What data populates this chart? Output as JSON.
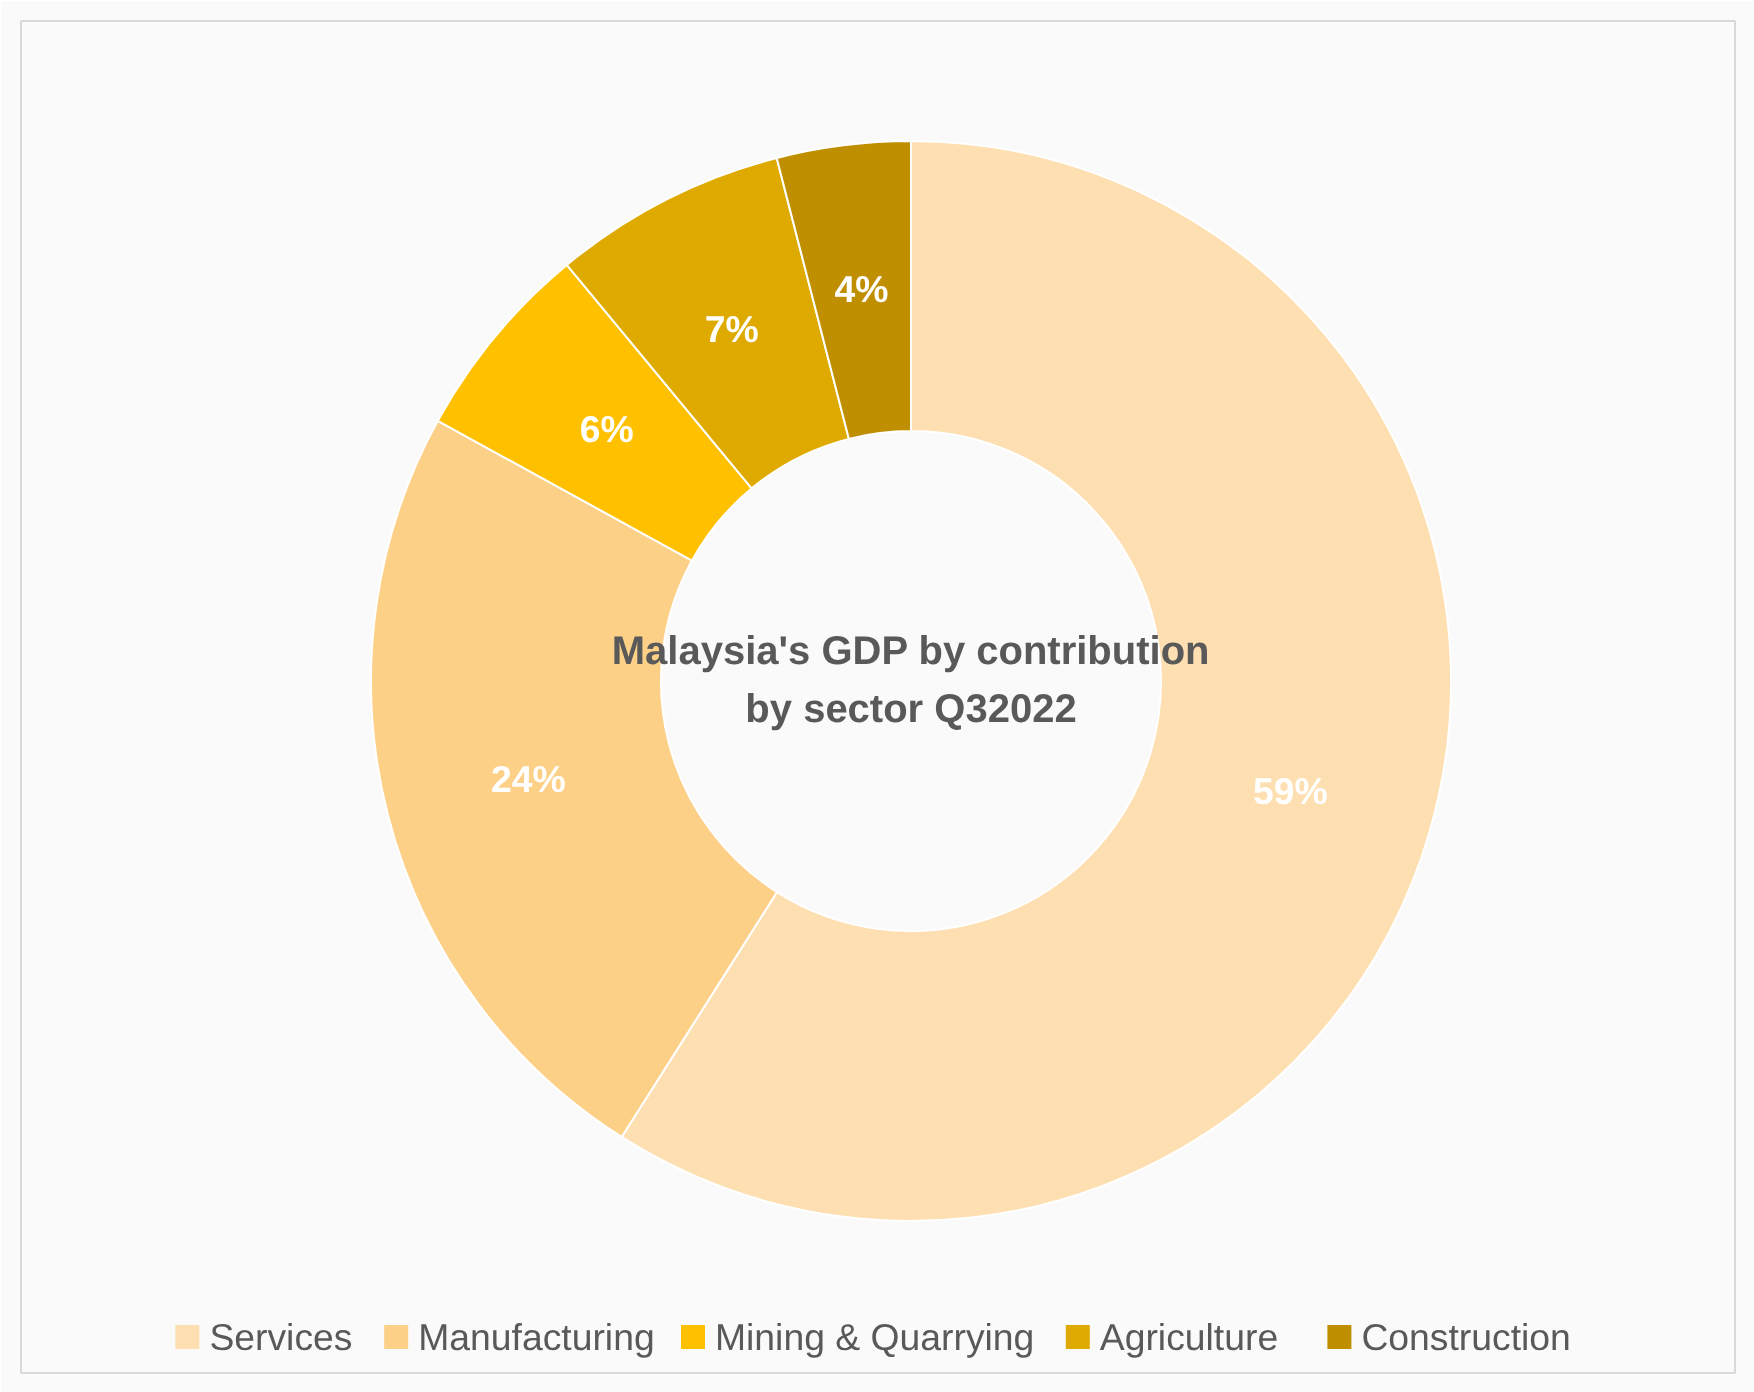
{
  "chart_data": {
    "type": "donut",
    "title": "Malaysia's GDP by contribution\nby sector Q32022",
    "categories": [
      "Services",
      "Manufacturing",
      "Mining & Quarrying",
      "Agriculture",
      "Construction"
    ],
    "values": [
      59,
      24,
      6,
      7,
      4
    ],
    "colors": [
      "#fddfb1",
      "#fdd088",
      "#ffc000",
      "#deaa00",
      "#bf8f00"
    ],
    "value_labels": [
      "59%",
      "24%",
      "6%",
      "7%",
      "4%"
    ],
    "legend": "bottom"
  }
}
